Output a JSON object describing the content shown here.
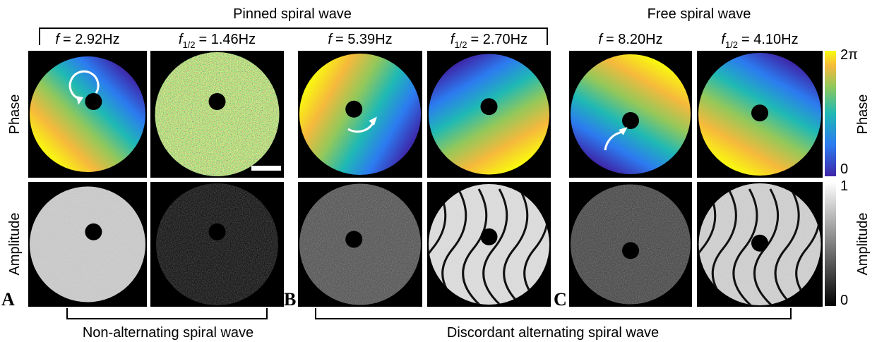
{
  "titles": {
    "pinned": "Pinned spiral wave",
    "free": "Free spiral wave"
  },
  "columns": [
    {
      "symbol": "f",
      "value": "= 2.92Hz"
    },
    {
      "symbol": "f",
      "subscript": "1/2",
      "value": "= 1.46Hz"
    },
    {
      "symbol": "f",
      "value": "= 5.39Hz"
    },
    {
      "symbol": "f",
      "subscript": "1/2",
      "value": "= 2.70Hz"
    },
    {
      "symbol": "f",
      "value": "= 8.20Hz"
    },
    {
      "symbol": "f",
      "subscript": "1/2",
      "value": "= 4.10Hz"
    }
  ],
  "row_labels": [
    "Phase",
    "Amplitude"
  ],
  "panel_letters": [
    "A",
    "B",
    "C"
  ],
  "colorbars": {
    "phase": {
      "label": "Phase",
      "max": "2π",
      "min": "0"
    },
    "amplitude": {
      "label": "Amplitude",
      "max": "1",
      "min": "0"
    }
  },
  "bottom_labels": [
    "Non-alternating spiral wave",
    "Discordant alternating spiral wave"
  ]
}
